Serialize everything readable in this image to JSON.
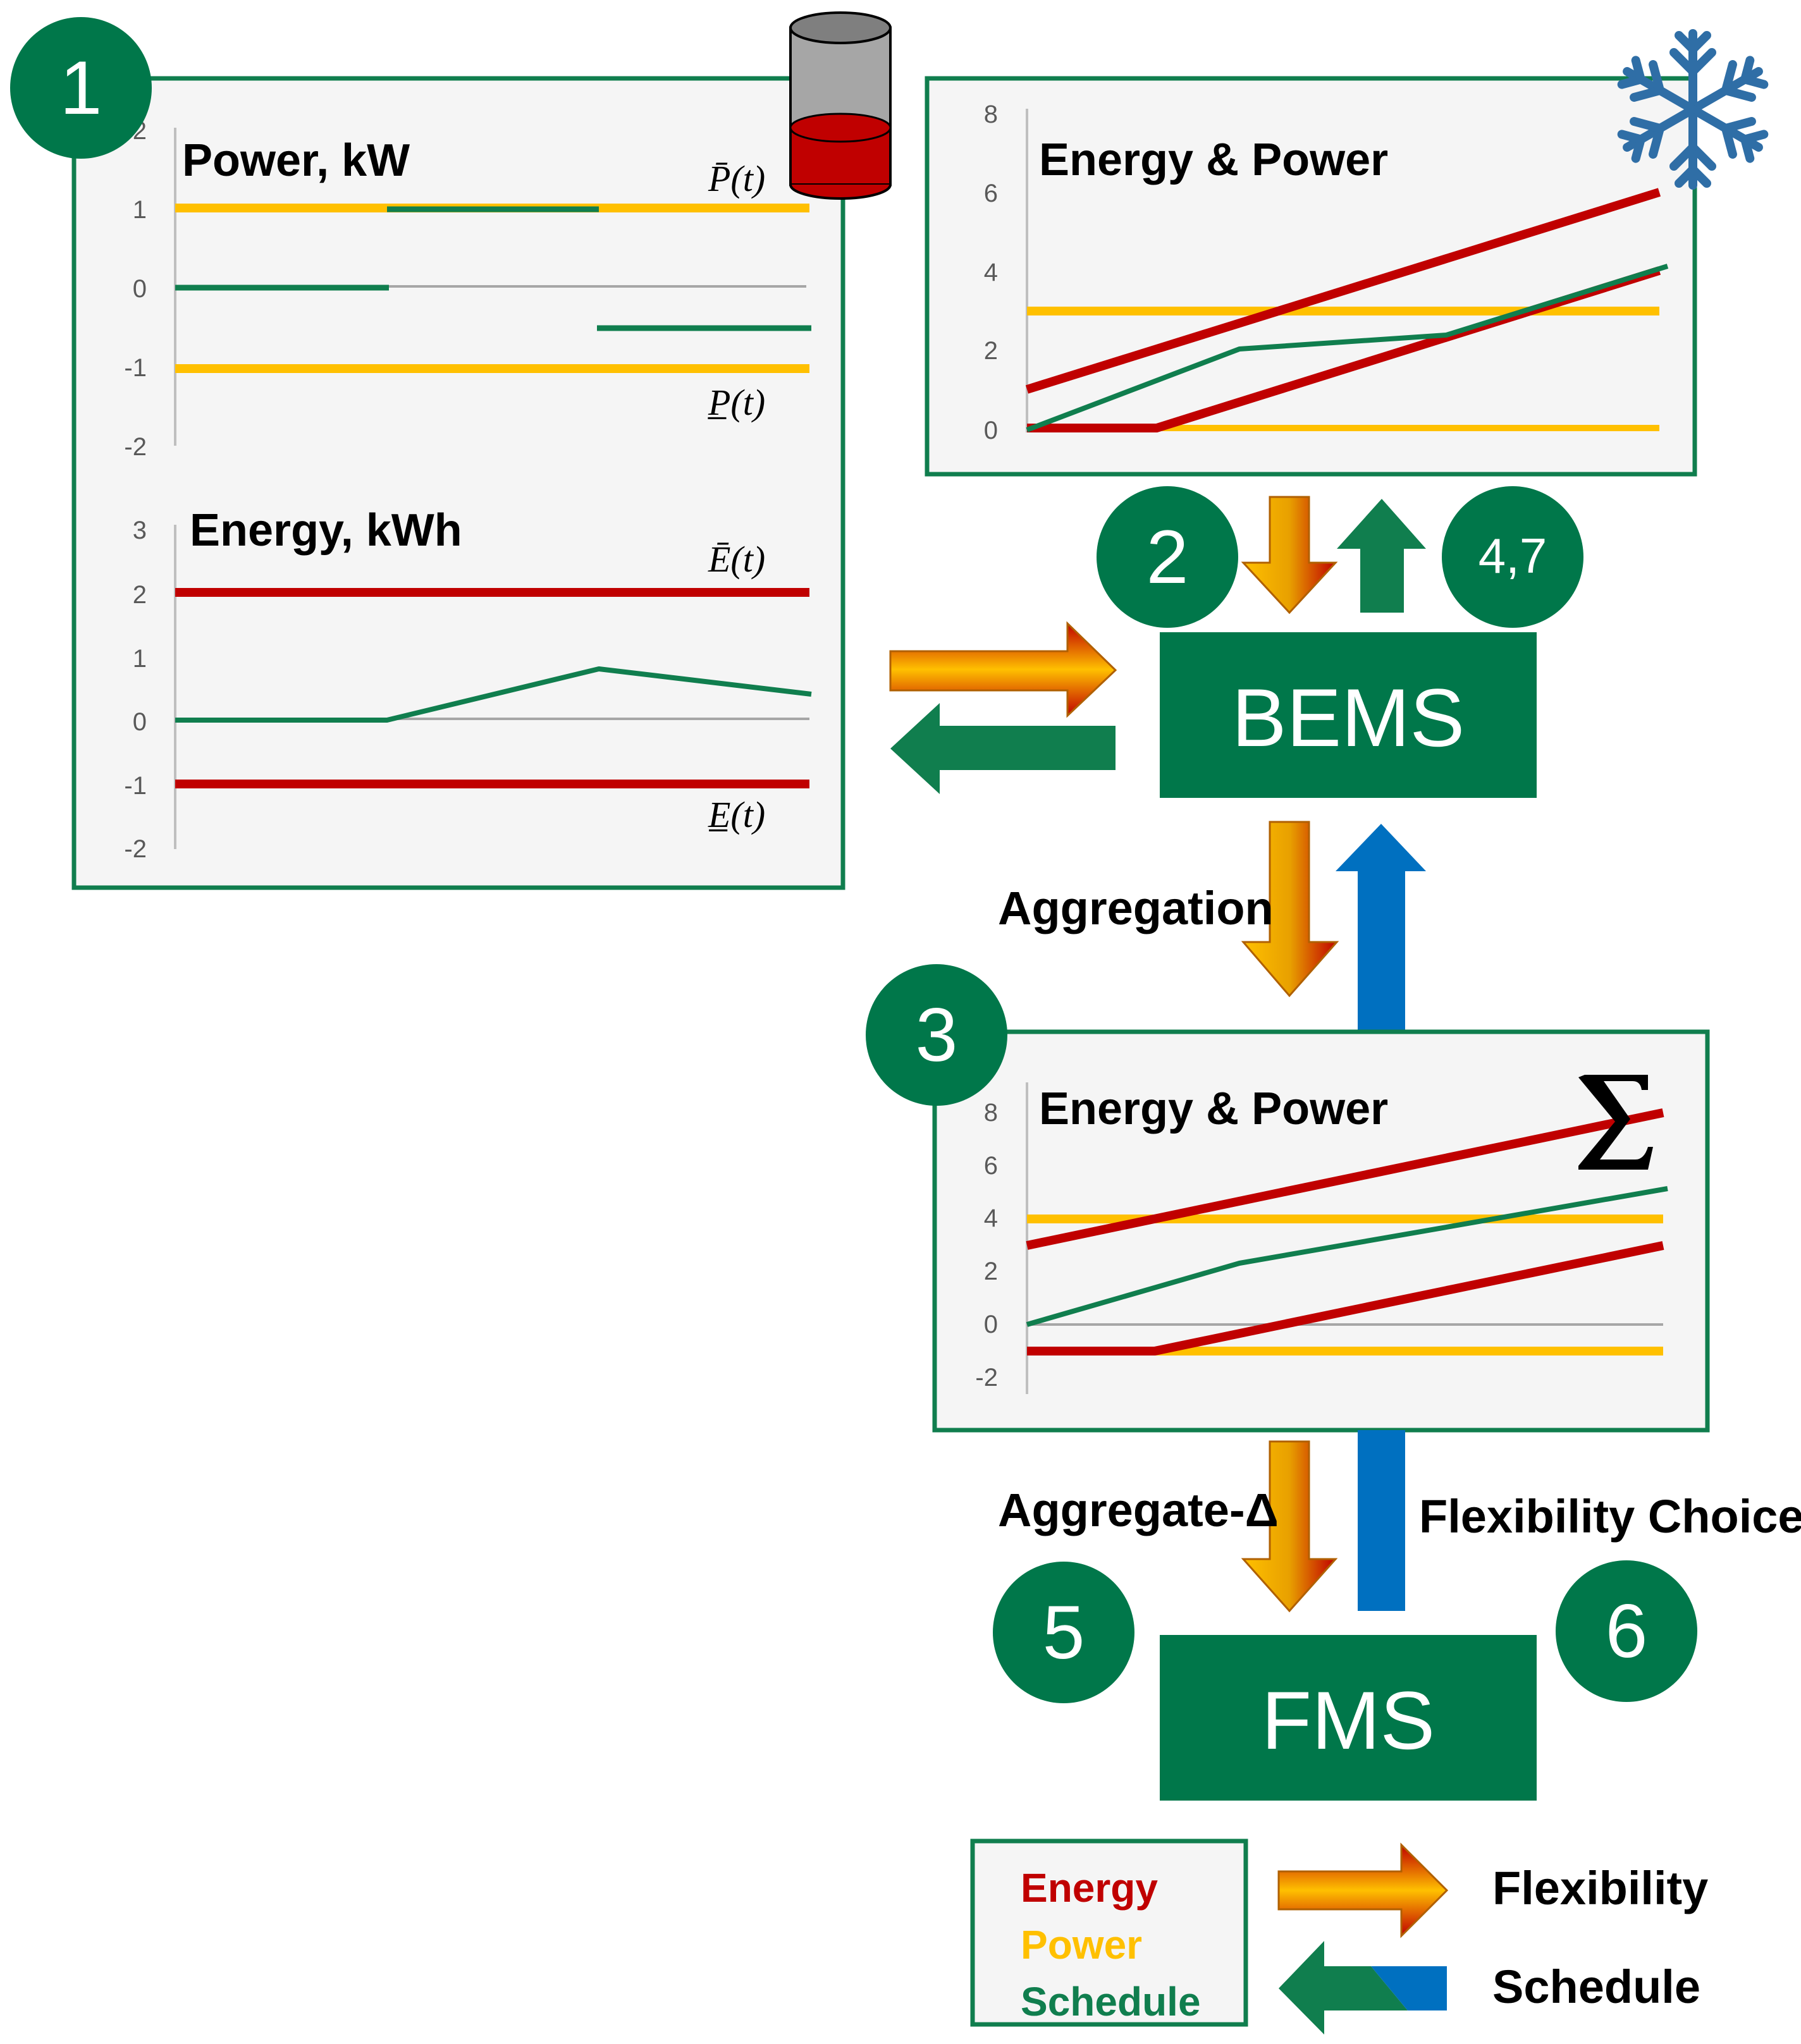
{
  "colors": {
    "green": "#00774A",
    "energy": "#C00000",
    "power": "#FFC000",
    "schedule": "#107E4E",
    "blue": "#0070C0",
    "panel_bg": "#F5F5F5",
    "snowflake": "#2F6EA6"
  },
  "markers": {
    "m1": "1",
    "m2": "2",
    "m3": "3",
    "m47": "4,7",
    "m5": "5",
    "m6": "6"
  },
  "boxes": {
    "bems": "BEMS",
    "fms": "FMS"
  },
  "labels": {
    "aggregation": "Aggregation",
    "aggregate_delta": "Aggregate-Δ",
    "flexibility_choice": "Flexibility Choice"
  },
  "legend": {
    "energy": "Energy",
    "power": "Power",
    "schedule": "Schedule",
    "flexibility": "Flexibility",
    "schedule_arrow": "Schedule"
  },
  "icons": {
    "battery": "battery-icon",
    "snowflake": "snowflake-icon",
    "sum": "sum-icon"
  },
  "chart_data": [
    {
      "id": "power",
      "type": "line",
      "title": "Power, kW",
      "yticks": [
        "2",
        "1",
        "0",
        "-1",
        "-2"
      ],
      "ylim": [
        -2,
        2
      ],
      "xlim": [
        0,
        6
      ],
      "annotations": {
        "upper": "P̄(t)",
        "lower": "P̲(t)"
      },
      "series": [
        {
          "role": "power",
          "points": [
            [
              0,
              1
            ],
            [
              6,
              1
            ]
          ]
        },
        {
          "role": "power",
          "points": [
            [
              0,
              -1
            ],
            [
              6,
              -1
            ]
          ]
        },
        {
          "role": "schedule",
          "points": [
            [
              0,
              0
            ],
            [
              2,
              0
            ]
          ]
        },
        {
          "role": "schedule",
          "points": [
            [
              2,
              1
            ],
            [
              4,
              1
            ]
          ]
        },
        {
          "role": "schedule",
          "points": [
            [
              4,
              -0.5
            ],
            [
              6,
              -0.5
            ]
          ]
        }
      ]
    },
    {
      "id": "energy",
      "type": "line",
      "title": "Energy, kWh",
      "yticks": [
        "3",
        "2",
        "1",
        "0",
        "-1",
        "-2"
      ],
      "ylim": [
        -2,
        3
      ],
      "xlim": [
        0,
        6
      ],
      "annotations": {
        "upper": "Ē(t)",
        "lower": "E̲(t)"
      },
      "series": [
        {
          "role": "energy",
          "points": [
            [
              0,
              2
            ],
            [
              6,
              2
            ]
          ]
        },
        {
          "role": "energy",
          "points": [
            [
              0,
              -1
            ],
            [
              6,
              -1
            ]
          ]
        },
        {
          "role": "schedule",
          "points": [
            [
              0,
              0
            ],
            [
              2,
              0
            ],
            [
              4,
              0.8
            ],
            [
              6,
              0.4
            ]
          ]
        }
      ]
    },
    {
      "id": "bems_flex",
      "type": "line",
      "title": "Energy & Power",
      "yticks": [
        "8",
        "6",
        "4",
        "2",
        "0"
      ],
      "ylim": [
        0,
        8
      ],
      "xlim": [
        0,
        6
      ],
      "series": [
        {
          "role": "power",
          "points": [
            [
              0,
              3
            ],
            [
              6,
              3
            ]
          ]
        },
        {
          "role": "power",
          "points": [
            [
              0,
              0
            ],
            [
              6,
              0
            ]
          ]
        },
        {
          "role": "energy",
          "points": [
            [
              0,
              1
            ],
            [
              6,
              6
            ]
          ]
        },
        {
          "role": "energy",
          "points": [
            [
              0,
              0
            ],
            [
              1.3,
              0
            ],
            [
              6,
              4
            ]
          ]
        },
        {
          "role": "schedule",
          "points": [
            [
              0,
              0
            ],
            [
              2,
              2
            ],
            [
              4,
              2.4
            ],
            [
              6,
              4.1
            ]
          ]
        }
      ]
    },
    {
      "id": "aggregate",
      "type": "line",
      "title": "Energy & Power",
      "yticks": [
        "8",
        "6",
        "4",
        "2",
        "0",
        "-2"
      ],
      "ylim": [
        -2,
        8
      ],
      "xlim": [
        0,
        6
      ],
      "series": [
        {
          "role": "power",
          "points": [
            [
              0,
              4
            ],
            [
              6,
              4
            ]
          ]
        },
        {
          "role": "power",
          "points": [
            [
              0,
              -1
            ],
            [
              6,
              -1
            ]
          ]
        },
        {
          "role": "energy",
          "points": [
            [
              0,
              3
            ],
            [
              6,
              8
            ]
          ]
        },
        {
          "role": "energy",
          "points": [
            [
              0,
              -1
            ],
            [
              1.2,
              -1
            ],
            [
              6,
              3
            ]
          ]
        },
        {
          "role": "schedule",
          "points": [
            [
              0,
              0
            ],
            [
              2,
              2.4
            ],
            [
              6,
              5.1
            ]
          ]
        }
      ]
    }
  ]
}
